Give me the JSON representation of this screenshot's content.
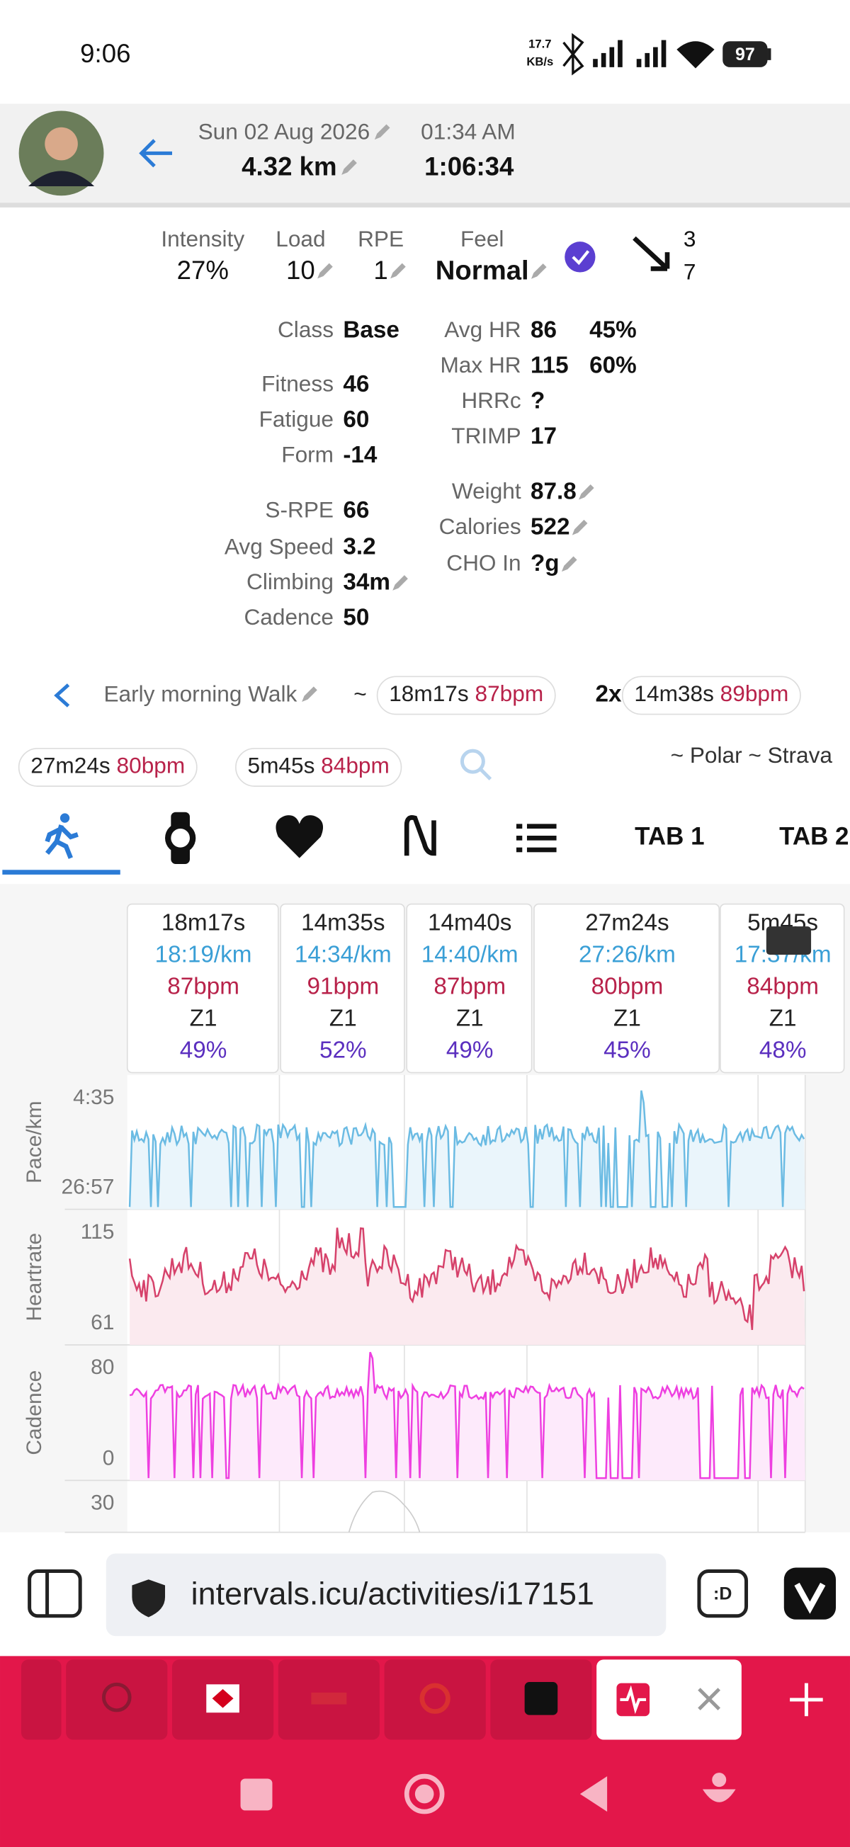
{
  "status_bar": {
    "time": "9:06",
    "net_speed": "17.7",
    "net_unit": "KB/s",
    "battery": "97"
  },
  "header": {
    "date": "Sun 02 Aug 2026",
    "start_time": "01:34 AM",
    "distance": "4.32 km",
    "duration": "1:06:34"
  },
  "summary": [
    {
      "label": "Intensity",
      "value": "27%"
    },
    {
      "label": "Load",
      "value": "10"
    },
    {
      "label": "RPE",
      "value": "1"
    },
    {
      "label": "Feel",
      "value": "Normal"
    }
  ],
  "trend": {
    "top": "3",
    "bottom": "7"
  },
  "stats_left": [
    {
      "label": "Class",
      "value": "Base"
    },
    {
      "label": "Fitness",
      "value": "46"
    },
    {
      "label": "Fatigue",
      "value": "60"
    },
    {
      "label": "Form",
      "value": "-14"
    },
    {
      "label": "S-RPE",
      "value": "66"
    },
    {
      "label": "Avg Speed",
      "value": "3.2"
    },
    {
      "label": "Climbing",
      "value": "34m"
    },
    {
      "label": "Cadence",
      "value": "50"
    }
  ],
  "stats_right": [
    {
      "label": "Avg HR",
      "value": "86",
      "extra": "45%"
    },
    {
      "label": "Max HR",
      "value": "115",
      "extra": "60%"
    },
    {
      "label": "HRRc",
      "value": "?"
    },
    {
      "label": "TRIMP",
      "value": "17"
    },
    {
      "label": "Weight",
      "value": "87.8"
    },
    {
      "label": "Calories",
      "value": "522"
    },
    {
      "label": "CHO In",
      "value": "?g"
    }
  ],
  "activity": {
    "name": "Early morning Walk",
    "separator": "~",
    "repeat": "2x",
    "sources": "~ Polar ~ Strava"
  },
  "chips": [
    {
      "duration": "18m17s",
      "hr": "87bpm"
    },
    {
      "duration": "14m38s",
      "hr": "89bpm"
    },
    {
      "duration": "27m24s",
      "hr": "80bpm"
    },
    {
      "duration": "5m45s",
      "hr": "84bpm"
    }
  ],
  "tabs": [
    "TAB 1",
    "TAB 2"
  ],
  "intervals": [
    {
      "duration": "18m17s",
      "pace": "18:19/km",
      "hr": "87bpm",
      "zone": "Z1",
      "percent": "49%"
    },
    {
      "duration": "14m35s",
      "pace": "14:34/km",
      "hr": "91bpm",
      "zone": "Z1",
      "percent": "52%"
    },
    {
      "duration": "14m40s",
      "pace": "14:40/km",
      "hr": "87bpm",
      "zone": "Z1",
      "percent": "49%"
    },
    {
      "duration": "27m24s",
      "pace": "27:26/km",
      "hr": "80bpm",
      "zone": "Z1",
      "percent": "45%"
    },
    {
      "duration": "5m45s",
      "pace": "17:37/km",
      "hr": "84bpm",
      "zone": "Z1",
      "percent": "48%"
    }
  ],
  "charts": [
    {
      "label": "Pace/km",
      "top": "4:35",
      "bottom": "26:57"
    },
    {
      "label": "Heartrate",
      "top": "115",
      "bottom": "61"
    },
    {
      "label": "Cadence",
      "top": "80",
      "bottom": "0"
    },
    {
      "top": "30"
    }
  ],
  "browser": {
    "url": "intervals.icu/activities/i17151",
    "badge": ":D"
  }
}
